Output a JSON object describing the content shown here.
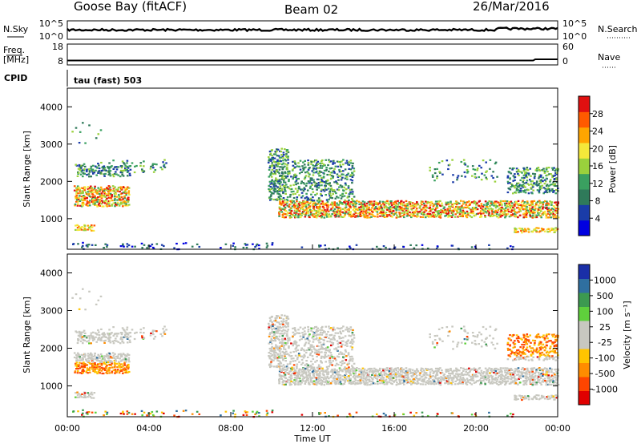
{
  "header": {
    "station": "Goose Bay (fitACF)",
    "beam": "Beam 02",
    "date": "26/Mar/2016"
  },
  "colors": {
    "power_scale": [
      "#0000e0",
      "#1a3ca8",
      "#2f7a5a",
      "#3aa060",
      "#9ad13c",
      "#f4e83a",
      "#ffa500",
      "#ff5a00",
      "#e01010"
    ],
    "velocity_scale": [
      "#e00000",
      "#ff4500",
      "#ff8c00",
      "#ffc400",
      "#c8c8c0",
      "#c8c8c0",
      "#5fd03c",
      "#3c9a50",
      "#2f6fa0",
      "#1a2fa8"
    ],
    "ground_scatter": "#c8c8c0"
  },
  "chart_data": [
    {
      "type": "line",
      "name": "nsky-nsearch-strip",
      "left_label": "N.Sky",
      "right_label": "N.Search",
      "left_ticks": [
        "10^5",
        "10^0"
      ],
      "right_ticks": [
        "10^5",
        "10^0"
      ]
    },
    {
      "type": "line",
      "name": "freq-nave-strip",
      "left_label_top": "Freq.",
      "left_label_bottom": "[MHz]",
      "right_label": "Nave",
      "left_ticks": [
        "18",
        "8"
      ],
      "right_ticks": [
        "60",
        "0"
      ]
    },
    {
      "type": "table",
      "name": "cpid",
      "label": "CPID",
      "mode": "tau (fast) 503"
    },
    {
      "type": "heatmap",
      "name": "power",
      "ylabel": "Slant Range [km]",
      "yticks": [
        1000,
        2000,
        3000,
        4000
      ],
      "colorbar_label": "Power [dB]",
      "colorbar_ticks": [
        "4",
        "8",
        "12",
        "16",
        "20",
        "24",
        "28"
      ]
    },
    {
      "type": "heatmap",
      "name": "velocity",
      "ylabel": "Slant Range [km]",
      "yticks": [
        1000,
        2000,
        3000,
        4000
      ],
      "colorbar_label": "Velocity [m s⁻¹]",
      "colorbar_ticks": [
        "1000",
        "500",
        "100",
        "25",
        "-25",
        "-100",
        "-500",
        "-1000"
      ]
    }
  ],
  "time_axis": {
    "xlabel": "Time UT",
    "ticks": [
      "00:00",
      "04:00",
      "08:00",
      "12:00",
      "16:00",
      "20:00",
      "00:00"
    ],
    "range_hours": [
      0,
      24
    ]
  }
}
